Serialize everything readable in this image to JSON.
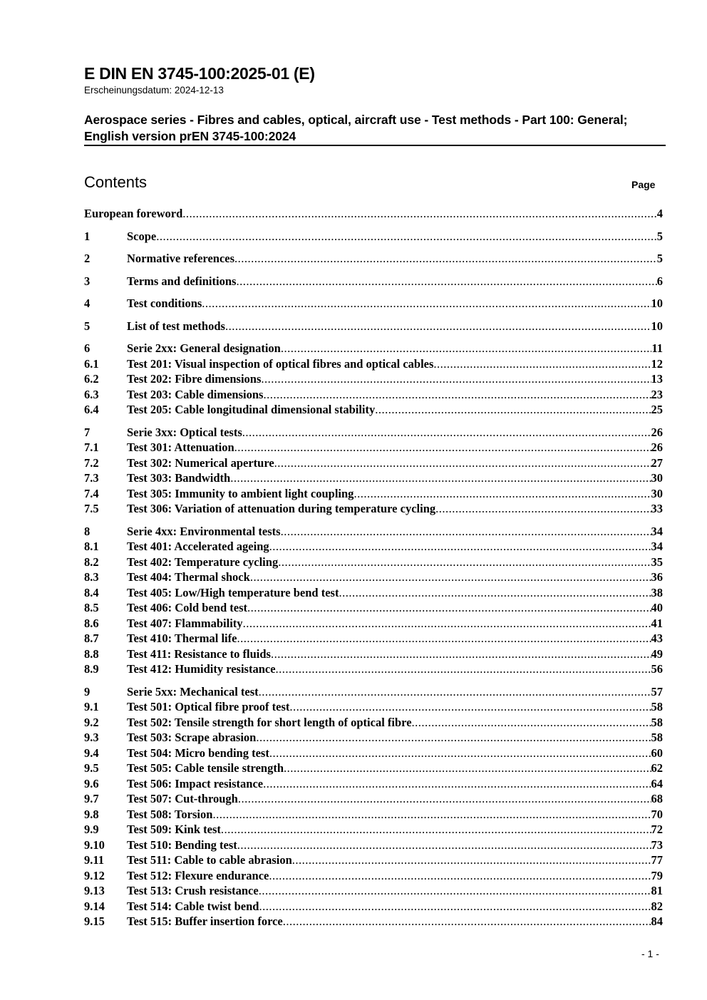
{
  "header": {
    "doc_id": "E DIN EN 3745-100:2025-01 (E)",
    "publication_date": "Erscheinungsdatum: 2024-12-13",
    "title": "Aerospace series - Fibres and cables, optical, aircraft use - Test methods - Part 100: General; English version prEN 3745-100:2024"
  },
  "contents": {
    "heading": "Contents",
    "page_label": "Page",
    "groups": [
      [
        {
          "num": "",
          "title": "European foreword",
          "page": "4"
        }
      ],
      [
        {
          "num": "1",
          "title": "Scope",
          "page": "5"
        }
      ],
      [
        {
          "num": "2",
          "title": "Normative references",
          "page": "5"
        }
      ],
      [
        {
          "num": "3",
          "title": "Terms and definitions",
          "page": "6"
        }
      ],
      [
        {
          "num": "4",
          "title": "Test conditions",
          "page": "10"
        }
      ],
      [
        {
          "num": "5",
          "title": "List of test methods",
          "page": "10"
        }
      ],
      [
        {
          "num": "6",
          "title": "Serie 2xx: General designation",
          "page": "11"
        },
        {
          "num": "6.1",
          "title": "Test 201: Visual inspection of optical fibres and optical cables",
          "page": "12"
        },
        {
          "num": "6.2",
          "title": "Test 202: Fibre dimensions",
          "page": "13"
        },
        {
          "num": "6.3",
          "title": "Test 203: Cable dimensions",
          "page": "23"
        },
        {
          "num": "6.4",
          "title": "Test 205: Cable longitudinal dimensional stability",
          "page": "25"
        }
      ],
      [
        {
          "num": "7",
          "title": "Serie 3xx: Optical tests",
          "page": "26"
        },
        {
          "num": "7.1",
          "title": "Test 301: Attenuation",
          "page": "26"
        },
        {
          "num": "7.2",
          "title": "Test 302: Numerical aperture",
          "page": "27"
        },
        {
          "num": "7.3",
          "title": "Test 303: Bandwidth",
          "page": "30"
        },
        {
          "num": "7.4",
          "title": "Test 305: Immunity to ambient light coupling",
          "page": "30"
        },
        {
          "num": "7.5",
          "title": "Test 306: Variation of attenuation during temperature cycling",
          "page": "33"
        }
      ],
      [
        {
          "num": "8",
          "title": "Serie 4xx: Environmental tests",
          "page": "34"
        },
        {
          "num": "8.1",
          "title": "Test 401: Accelerated ageing",
          "page": "34"
        },
        {
          "num": "8.2",
          "title": "Test 402: Temperature cycling",
          "page": "35"
        },
        {
          "num": "8.3",
          "title": "Test 404: Thermal shock",
          "page": "36"
        },
        {
          "num": "8.4",
          "title": "Test 405: Low/High temperature bend test",
          "page": "38"
        },
        {
          "num": "8.5",
          "title": "Test 406: Cold bend test",
          "page": "40"
        },
        {
          "num": "8.6",
          "title": "Test 407: Flammability",
          "page": "41"
        },
        {
          "num": "8.7",
          "title": "Test 410: Thermal life",
          "page": "43"
        },
        {
          "num": "8.8",
          "title": "Test 411: Resistance to fluids",
          "page": "49"
        },
        {
          "num": "8.9",
          "title": "Test 412: Humidity resistance",
          "page": "56"
        }
      ],
      [
        {
          "num": "9",
          "title": "Serie 5xx: Mechanical test",
          "page": "57"
        },
        {
          "num": "9.1",
          "title": "Test 501: Optical fibre proof test",
          "page": "58"
        },
        {
          "num": "9.2",
          "title": "Test 502: Tensile strength for short length of optical fibre",
          "page": "58"
        },
        {
          "num": "9.3",
          "title": "Test 503: Scrape abrasion",
          "page": "58"
        },
        {
          "num": "9.4",
          "title": "Test 504: Micro bending test",
          "page": "60"
        },
        {
          "num": "9.5",
          "title": "Test 505: Cable tensile strength",
          "page": "62"
        },
        {
          "num": "9.6",
          "title": "Test 506: Impact resistance",
          "page": "64"
        },
        {
          "num": "9.7",
          "title": "Test 507: Cut-through",
          "page": "68"
        },
        {
          "num": "9.8",
          "title": "Test 508: Torsion",
          "page": "70"
        },
        {
          "num": "9.9",
          "title": "Test 509: Kink test",
          "page": "72"
        },
        {
          "num": "9.10",
          "title": "Test 510: Bending test",
          "page": "73"
        },
        {
          "num": "9.11",
          "title": "Test 511: Cable to cable abrasion",
          "page": "77"
        },
        {
          "num": "9.12",
          "title": "Test 512: Flexure endurance",
          "page": "79"
        },
        {
          "num": "9.13",
          "title": "Test 513: Crush resistance",
          "page": "81"
        },
        {
          "num": "9.14",
          "title": "Test 514: Cable twist bend",
          "page": "82"
        },
        {
          "num": "9.15",
          "title": "Test 515: Buffer insertion force",
          "page": "84"
        }
      ]
    ]
  },
  "footer": {
    "page_number": "- 1 -"
  }
}
